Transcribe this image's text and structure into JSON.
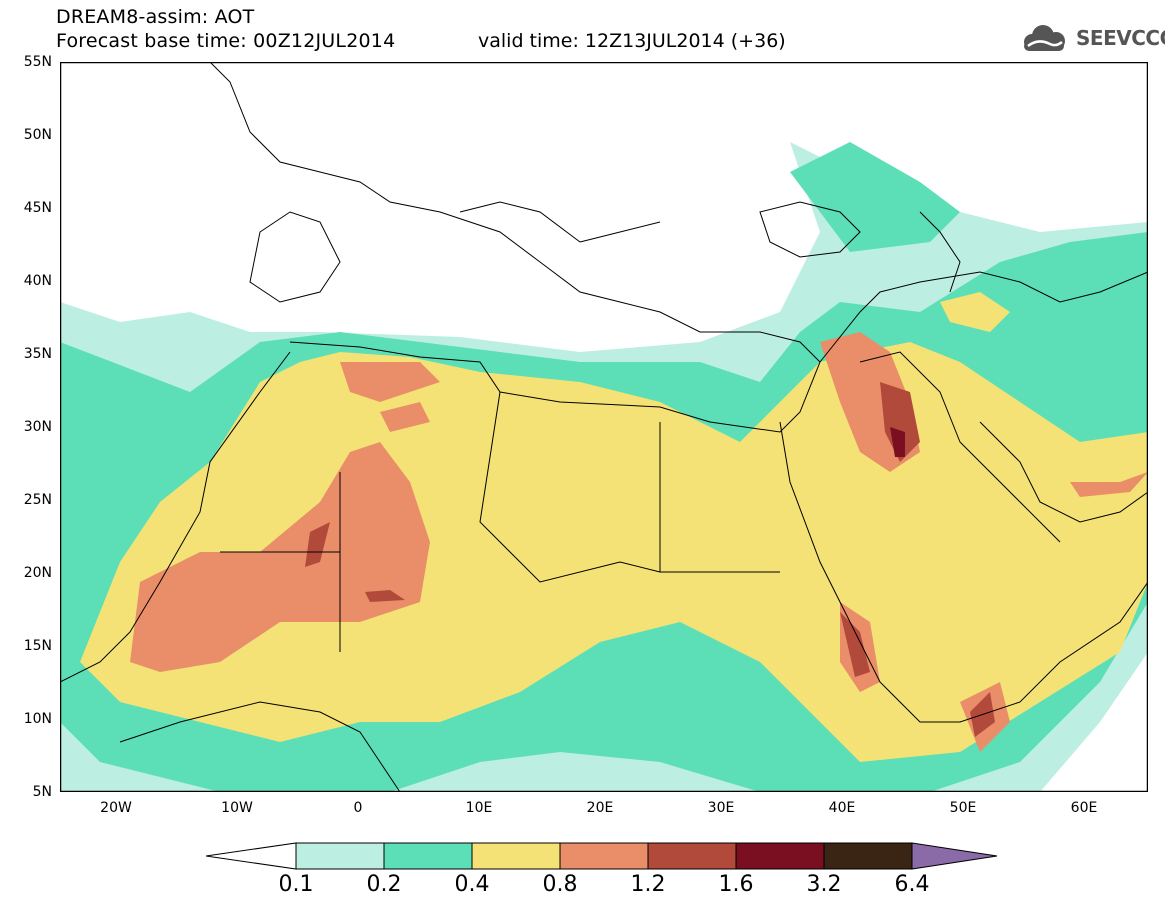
{
  "header": {
    "title_line1": "DREAM8-assim: AOT",
    "base_time": "Forecast base time: 00Z12JUL2014",
    "valid_time": "valid time: 12Z13JUL2014 (+36)",
    "logo_text": "SEEVCCC"
  },
  "map": {
    "region": "North Africa, Europe, Middle East",
    "variable": "AOT",
    "lat_labels": [
      "55N",
      "50N",
      "45N",
      "40N",
      "35N",
      "30N",
      "25N",
      "20N",
      "15N",
      "10N",
      "5N"
    ],
    "lon_labels": [
      "20W",
      "10W",
      "0",
      "10E",
      "20E",
      "30E",
      "40E",
      "50E",
      "60E"
    ]
  },
  "colorbar": {
    "levels": [
      "0.1",
      "0.2",
      "0.4",
      "0.8",
      "1.2",
      "1.6",
      "3.2",
      "6.4"
    ],
    "colors": {
      "below": "#ffffff",
      "c1": "#bdeee2",
      "c2": "#5cdfb6",
      "c3": "#f4e276",
      "c4": "#e98e68",
      "c5": "#b24a3c",
      "c6": "#7a0f22",
      "c7": "#3a2414",
      "above": "#8b6aa8"
    }
  }
}
